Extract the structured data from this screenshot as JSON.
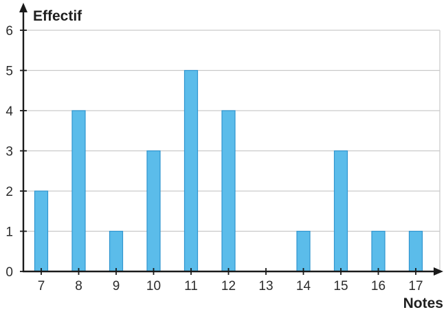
{
  "chart_data": {
    "type": "bar",
    "xlabel": "Notes",
    "ylabel": "Effectif",
    "categories": [
      "7",
      "8",
      "9",
      "10",
      "11",
      "12",
      "13",
      "14",
      "15",
      "16",
      "17"
    ],
    "values": [
      2,
      4,
      1,
      3,
      5,
      4,
      0,
      1,
      3,
      1,
      1
    ],
    "ylim": [
      0,
      6
    ],
    "yticks": [
      "0",
      "1",
      "2",
      "3",
      "4",
      "5",
      "6"
    ],
    "grid": true,
    "legend": "none",
    "colors": {
      "bar_fill": "#5bbcea",
      "bar_stroke": "#2f95cf",
      "grid": "#c9c9c9",
      "axis": "#1a1a1a"
    }
  }
}
